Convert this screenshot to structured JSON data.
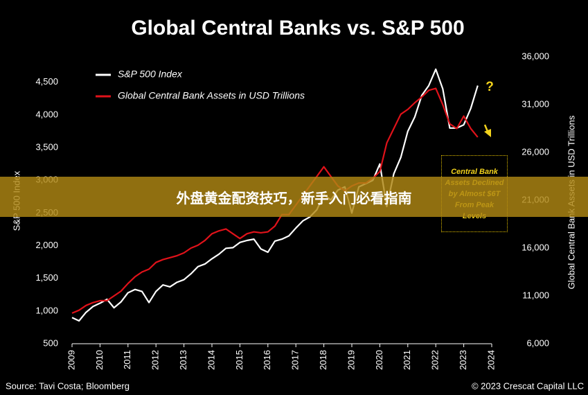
{
  "chart_data": {
    "type": "line",
    "title": "Global Central Banks vs. S&P 500",
    "ylabel": "S&P 500 Index",
    "y2label": "Global Central Bank Assets in USD Trillions",
    "source": "Source: Tavi Costa; Bloomberg",
    "credit": "© 2023 Crescat Capital LLC",
    "annotations": [
      "?",
      "Central Bank Assets Declined by Almost $6T From Peak Levels"
    ],
    "legend": "upper left",
    "x": [
      2009.0,
      2009.25,
      2009.5,
      2009.75,
      2010.0,
      2010.25,
      2010.5,
      2010.75,
      2011.0,
      2011.25,
      2011.5,
      2011.75,
      2012.0,
      2012.25,
      2012.5,
      2012.75,
      2013.0,
      2013.25,
      2013.5,
      2013.75,
      2014.0,
      2014.25,
      2014.5,
      2014.75,
      2015.0,
      2015.25,
      2015.5,
      2015.75,
      2016.0,
      2016.25,
      2016.5,
      2016.75,
      2017.0,
      2017.25,
      2017.5,
      2017.75,
      2018.0,
      2018.25,
      2018.5,
      2018.75,
      2019.0,
      2019.25,
      2019.5,
      2019.75,
      2020.0,
      2020.25,
      2020.5,
      2020.75,
      2021.0,
      2021.25,
      2021.5,
      2021.75,
      2022.0,
      2022.25,
      2022.5,
      2022.75,
      2023.0,
      2023.25,
      2023.5
    ],
    "series": [
      {
        "name": "S&P 500 Index",
        "color": "#ffffff",
        "values": [
          900,
          850,
          980,
          1070,
          1120,
          1180,
          1050,
          1140,
          1280,
          1330,
          1300,
          1130,
          1300,
          1400,
          1370,
          1440,
          1480,
          1570,
          1680,
          1720,
          1800,
          1870,
          1960,
          1970,
          2050,
          2080,
          2100,
          1950,
          1900,
          2070,
          2100,
          2150,
          2270,
          2380,
          2440,
          2550,
          2780,
          2700,
          2850,
          2900,
          2500,
          2900,
          2950,
          3000,
          3250,
          2600,
          3100,
          3350,
          3750,
          3970,
          4300,
          4450,
          4700,
          4400,
          3800,
          3800,
          3850,
          4100,
          4450
        ]
      },
      {
        "name": "Global Central Bank Assets in USD Trillions",
        "color": "#e0121a",
        "axis": "y2",
        "values": [
          9200,
          9500,
          10000,
          10300,
          10500,
          10500,
          11000,
          11500,
          12300,
          13000,
          13500,
          13800,
          14500,
          14800,
          15000,
          15200,
          15500,
          16000,
          16300,
          16800,
          17500,
          17800,
          18000,
          17500,
          17000,
          17500,
          17700,
          17600,
          17700,
          18300,
          19500,
          19500,
          20500,
          21500,
          22500,
          23500,
          24500,
          23500,
          22500,
          22000,
          22500,
          22800,
          22800,
          23300,
          24000,
          27000,
          28500,
          30000,
          30500,
          31200,
          31800,
          32500,
          32700,
          31000,
          29000,
          28500,
          29800,
          28500,
          27600
        ]
      }
    ],
    "xlim": [
      2009,
      2024
    ],
    "xticks": [
      2009,
      2010,
      2011,
      2012,
      2013,
      2014,
      2015,
      2016,
      2017,
      2018,
      2019,
      2020,
      2021,
      2022,
      2023,
      2024
    ],
    "ylim": [
      500,
      4890
    ],
    "yticks": [
      500,
      {
        "value": 1000,
        "label": "1,000"
      },
      {
        "value": 1500,
        "label": "1,500"
      },
      {
        "value": 2000,
        "label": "2,000"
      },
      {
        "value": 2500,
        "label": "2,500"
      },
      {
        "value": 3000,
        "label": "3,000"
      },
      {
        "value": 3500,
        "label": "3,500"
      },
      {
        "value": 4000,
        "label": "4,000"
      },
      {
        "value": 4500,
        "label": "4,500"
      }
    ],
    "y2lim": [
      6000,
      36000
    ],
    "y2ticks": [
      {
        "value": 6000,
        "label": "6,000"
      },
      {
        "value": 11000,
        "label": "11,000"
      },
      {
        "value": 16000,
        "label": "16,000"
      },
      {
        "value": 21000,
        "label": "21,000"
      },
      {
        "value": 26000,
        "label": "26,000"
      },
      {
        "value": 31000,
        "label": "31,000"
      },
      {
        "value": 36000,
        "label": "36,000"
      }
    ],
    "grid": false
  },
  "banner": {
    "text": "外盘黄金配资技巧，新手入门必看指南"
  }
}
